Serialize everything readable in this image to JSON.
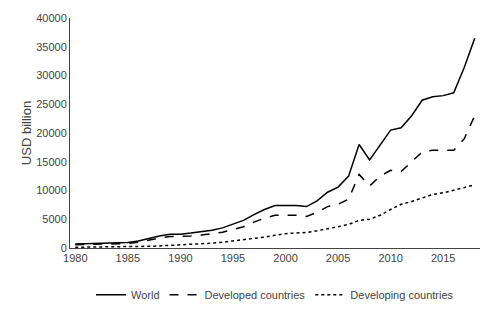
{
  "chart_data": {
    "type": "line",
    "ylabel": "USD billion",
    "x": [
      1980,
      1981,
      1982,
      1983,
      1984,
      1985,
      1986,
      1987,
      1988,
      1989,
      1990,
      1991,
      1992,
      1993,
      1994,
      1995,
      1996,
      1997,
      1998,
      1999,
      2000,
      2001,
      2002,
      2003,
      2004,
      2005,
      2006,
      2007,
      2008,
      2009,
      2010,
      2011,
      2012,
      2013,
      2014,
      2015,
      2016,
      2017,
      2018
    ],
    "series": [
      {
        "name": "World",
        "color": "#000000",
        "line_style": "solid",
        "values": [
          700,
          760,
          800,
          850,
          900,
          970,
          1200,
          1700,
          2100,
          2400,
          2400,
          2600,
          2800,
          3100,
          3500,
          4100,
          4800,
          5800,
          6700,
          7400,
          7400,
          7400,
          7200,
          8200,
          9700,
          10600,
          12500,
          18000,
          15300,
          18000,
          20500,
          20900,
          23000,
          25700,
          26300,
          26500,
          27000,
          31400,
          36500
        ]
      },
      {
        "name": "Developed countries",
        "color": "#000000",
        "line_style": "dashed",
        "values": [
          570,
          620,
          650,
          690,
          730,
          780,
          1000,
          1400,
          1750,
          2000,
          2000,
          2100,
          2250,
          2450,
          2750,
          3200,
          3700,
          4500,
          5200,
          5700,
          5700,
          5700,
          5500,
          6200,
          7200,
          7600,
          8500,
          12800,
          10800,
          12500,
          13500,
          13300,
          15000,
          16700,
          17000,
          17000,
          17000,
          19000,
          23000
        ]
      },
      {
        "name": "Developing countries",
        "color": "#000000",
        "line_style": "dotted",
        "values": [
          130,
          140,
          150,
          160,
          175,
          200,
          240,
          300,
          360,
          440,
          500,
          600,
          700,
          840,
          1000,
          1200,
          1450,
          1650,
          1900,
          2200,
          2500,
          2600,
          2700,
          3000,
          3300,
          3700,
          4100,
          4800,
          5000,
          5700,
          6700,
          7600,
          8100,
          8700,
          9300,
          9600,
          10000,
          10500,
          11000
        ]
      }
    ],
    "xlim": [
      1979.5,
      2018.5
    ],
    "xticks": [
      1980,
      1985,
      1990,
      1995,
      2000,
      2005,
      2010,
      2015
    ],
    "ylim": [
      0,
      40000
    ],
    "yticks": [
      0,
      5000,
      10000,
      15000,
      20000,
      25000,
      30000,
      35000,
      40000
    ],
    "grid": false,
    "legend": "bottom"
  }
}
